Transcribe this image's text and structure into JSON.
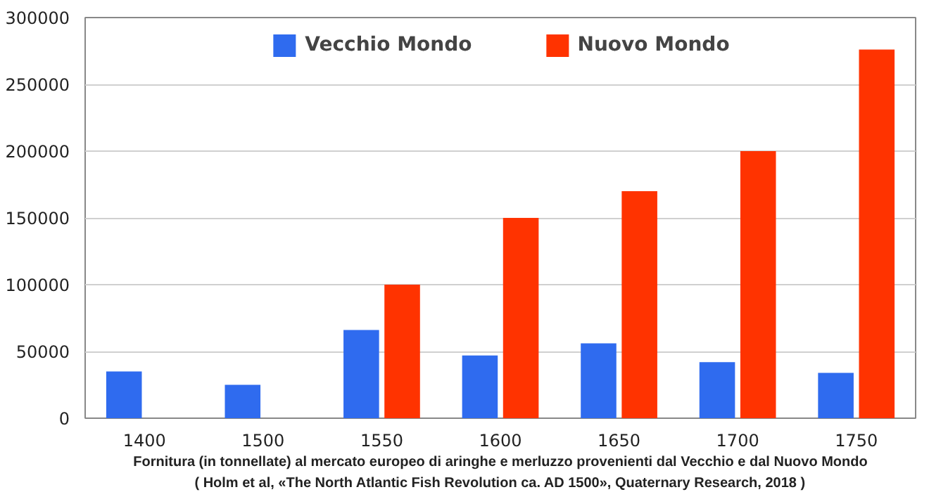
{
  "chart_data": {
    "type": "bar",
    "categories": [
      "1400",
      "1500",
      "1550",
      "1600",
      "1650",
      "1700",
      "1750"
    ],
    "series": [
      {
        "name": "Vecchio Mondo",
        "color": "#2f6bef",
        "values": [
          35000,
          25000,
          66000,
          47000,
          56000,
          42000,
          34000
        ]
      },
      {
        "name": "Nuovo Mondo",
        "color": "#ff3300",
        "values": [
          null,
          null,
          100000,
          150000,
          170000,
          200000,
          276000
        ]
      }
    ],
    "ylim": [
      0,
      300000
    ],
    "yticks": [
      0,
      50000,
      100000,
      150000,
      200000,
      250000,
      300000
    ],
    "grid": "y",
    "legend": "top",
    "annotations": [
      "Fornitura (in tonnellate) al mercato europeo di aringhe e merluzzo provenienti dal Vecchio e dal Nuovo Mondo",
      "( Holm et al, «The North Atlantic Fish Revolution ca. AD 1500», Quaternary Research, 2018 )"
    ]
  }
}
